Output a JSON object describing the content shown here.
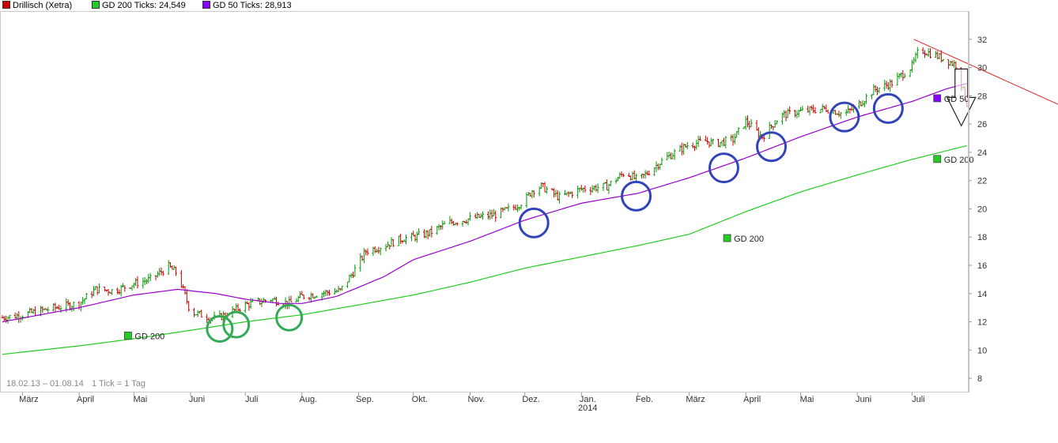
{
  "legend": [
    {
      "label": "Drillisch (Xetra)",
      "color": "#cc0000"
    },
    {
      "label": "GD 200 Ticks: 24,549",
      "color": "#22cc22"
    },
    {
      "label": "GD 50 Ticks: 28,913",
      "color": "#8800ff"
    }
  ],
  "footer": {
    "range": "18.02.13 – 01.08.14",
    "tick": "1 Tick = 1 Tag"
  },
  "colors": {
    "up": "#009900",
    "down": "#cc0000",
    "gd200": "#22cc22",
    "gd50": "#9900cc",
    "trendline": "#dd2222",
    "circle_green": "#33aa55",
    "circle_blue": "#3344bb",
    "axis": "#cccccc"
  },
  "chart_data": {
    "type": "line",
    "title": "",
    "x_range": [
      "18.02.13",
      "01.08.14"
    ],
    "y_range": [
      7,
      34
    ],
    "y_ticks": [
      8,
      10,
      12,
      14,
      16,
      18,
      20,
      22,
      24,
      26,
      28,
      30,
      32
    ],
    "x_ticks": [
      "März",
      "April",
      "Mai",
      "Juni",
      "Juli",
      "Aug.",
      "Sep.",
      "Okt.",
      "Nov.",
      "Dez.",
      "Jan.",
      "Feb.",
      "März",
      "April",
      "Mai",
      "Juni",
      "Juli"
    ],
    "x_tick_dates": [
      "2013-03-01",
      "2013-04-01",
      "2013-05-01",
      "2013-06-01",
      "2013-07-01",
      "2013-08-01",
      "2013-09-01",
      "2013-10-01",
      "2013-11-01",
      "2013-12-01",
      "2014-01-01",
      "2014-02-01",
      "2014-03-01",
      "2014-04-01",
      "2014-05-01",
      "2014-06-01",
      "2014-07-01"
    ],
    "year_label": "2014",
    "grid": false,
    "legend_position": "top-left",
    "price_series": {
      "name": "Drillisch (Xetra)",
      "dates": [
        "2013-02-18",
        "2013-03-01",
        "2013-03-15",
        "2013-04-01",
        "2013-04-10",
        "2013-04-20",
        "2013-05-01",
        "2013-05-10",
        "2013-05-20",
        "2013-05-25",
        "2013-06-01",
        "2013-06-15",
        "2013-06-25",
        "2013-07-01",
        "2013-07-15",
        "2013-07-25",
        "2013-08-01",
        "2013-08-15",
        "2013-08-22",
        "2013-08-29",
        "2013-09-05",
        "2013-09-15",
        "2013-09-25",
        "2013-10-01",
        "2013-10-10",
        "2013-10-20",
        "2013-11-01",
        "2013-11-15",
        "2013-11-25",
        "2013-12-01",
        "2013-12-05",
        "2013-12-10",
        "2013-12-20",
        "2014-01-01",
        "2014-01-15",
        "2014-01-25",
        "2014-02-01",
        "2014-02-15",
        "2014-02-28",
        "2014-03-10",
        "2014-03-15",
        "2014-03-25",
        "2014-04-01",
        "2014-04-10",
        "2014-04-20",
        "2014-05-01",
        "2014-05-15",
        "2014-05-25",
        "2014-06-01",
        "2014-06-10",
        "2014-06-20",
        "2014-07-01",
        "2014-07-05",
        "2014-07-15",
        "2014-07-25",
        "2014-08-01"
      ],
      "values": [
        12.3,
        12.5,
        12.9,
        13.3,
        14.3,
        14.2,
        14.7,
        15.0,
        15.9,
        15.4,
        12.7,
        12.2,
        12.8,
        13.2,
        13.6,
        13.3,
        13.8,
        14.1,
        14.2,
        15.5,
        17.0,
        17.4,
        17.9,
        18.0,
        18.3,
        19.0,
        19.3,
        19.6,
        20.1,
        20.6,
        21.3,
        21.6,
        20.8,
        21.4,
        21.6,
        22.6,
        22.0,
        23.5,
        24.5,
        24.8,
        24.6,
        24.9,
        26.2,
        25.1,
        26.6,
        26.9,
        27.1,
        26.7,
        27.3,
        28.4,
        28.9,
        30.1,
        31.3,
        30.8,
        30.2,
        27.0
      ]
    },
    "series": [
      {
        "name": "GD 200",
        "dates": [
          "2013-02-18",
          "2013-04-01",
          "2013-05-01",
          "2013-06-01",
          "2013-07-01",
          "2013-08-01",
          "2013-09-01",
          "2013-10-01",
          "2013-11-01",
          "2013-12-01",
          "2014-01-01",
          "2014-02-01",
          "2014-03-01",
          "2014-04-01",
          "2014-05-01",
          "2014-06-01",
          "2014-07-01",
          "2014-08-01"
        ],
        "values": [
          9.7,
          10.3,
          10.8,
          11.4,
          12.0,
          12.5,
          13.2,
          13.9,
          14.8,
          15.8,
          16.6,
          17.4,
          18.2,
          19.8,
          21.2,
          22.4,
          23.5,
          24.5
        ]
      },
      {
        "name": "GD 50",
        "dates": [
          "2013-02-18",
          "2013-03-15",
          "2013-04-01",
          "2013-05-01",
          "2013-05-25",
          "2013-06-15",
          "2013-07-01",
          "2013-07-20",
          "2013-08-01",
          "2013-08-20",
          "2013-09-15",
          "2013-10-01",
          "2013-11-01",
          "2013-12-01",
          "2014-01-01",
          "2014-02-01",
          "2014-03-01",
          "2014-04-01",
          "2014-05-01",
          "2014-06-01",
          "2014-07-01",
          "2014-07-20",
          "2014-08-01"
        ],
        "values": [
          12.0,
          12.6,
          13.0,
          13.9,
          14.3,
          14.0,
          13.6,
          13.3,
          13.3,
          13.8,
          15.2,
          16.4,
          17.7,
          19.2,
          20.4,
          21.1,
          22.2,
          23.6,
          25.1,
          26.5,
          27.6,
          28.5,
          28.9
        ]
      }
    ],
    "annotations": [
      {
        "label": "GD 200",
        "date": "2013-04-28",
        "value": 11.0
      },
      {
        "label": "GD 200",
        "date": "2014-03-22",
        "value": 17.9
      },
      {
        "label": "GD 200",
        "date": "2014-07-15",
        "value": 23.5
      },
      {
        "label": "GD 50",
        "date": "2014-07-15",
        "value": 27.8
      }
    ],
    "trendline": {
      "start": {
        "date": "2014-07-02",
        "value": 32.0
      },
      "end": {
        "date": "2014-08-25",
        "value": 27.4
      }
    },
    "circles_green": [
      {
        "date": "2013-06-17",
        "value": 11.5
      },
      {
        "date": "2013-06-26",
        "value": 11.8
      },
      {
        "date": "2013-07-25",
        "value": 12.3
      }
    ],
    "circles_blue": [
      {
        "date": "2013-12-06",
        "value": 19.0
      },
      {
        "date": "2014-01-31",
        "value": 20.9
      },
      {
        "date": "2014-03-20",
        "value": 22.9
      },
      {
        "date": "2014-04-15",
        "value": 24.4
      },
      {
        "date": "2014-05-25",
        "value": 26.5
      },
      {
        "date": "2014-06-18",
        "value": 27.1
      }
    ]
  }
}
